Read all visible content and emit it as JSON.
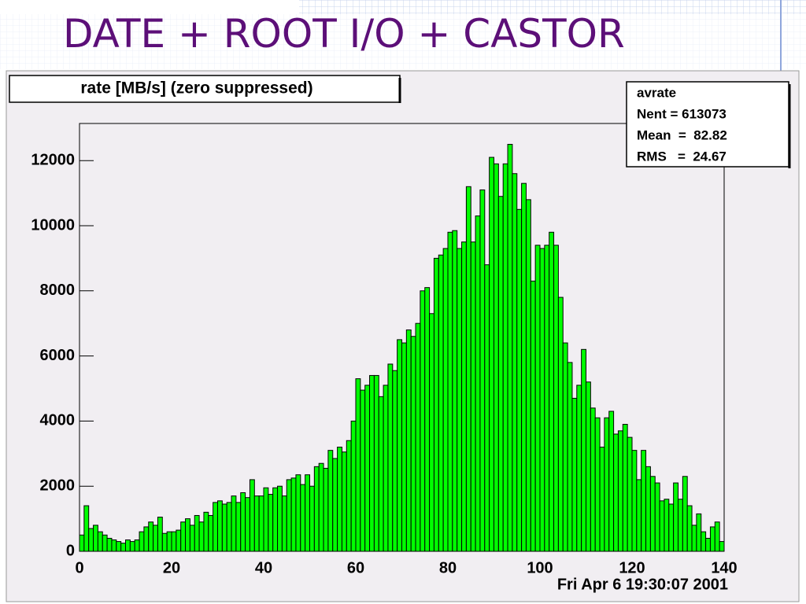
{
  "chart_data": {
    "type": "histogram",
    "slide_title": "DATE + ROOT I/O + CASTOR",
    "title": "rate [MB/s] (zero suppressed)",
    "stats": [
      "avrate",
      "Nent = 613073",
      "Mean  =  82.82",
      "RMS   =  24.67"
    ],
    "timestamp": "Fri Apr  6 19:30:07 2001",
    "color": "#00ff00",
    "bins": [
      0,
      1,
      2,
      3,
      4,
      5,
      6,
      7,
      8,
      9,
      10,
      11,
      12,
      13,
      14,
      15,
      16,
      17,
      18,
      19,
      20,
      21,
      22,
      23,
      24,
      25,
      26,
      27,
      28,
      29,
      30,
      31,
      32,
      33,
      34,
      35,
      36,
      37,
      38,
      39,
      40,
      41,
      42,
      43,
      44,
      45,
      46,
      47,
      48,
      49,
      50,
      51,
      52,
      53,
      54,
      55,
      56,
      57,
      58,
      59,
      60,
      61,
      62,
      63,
      64,
      65,
      66,
      67,
      68,
      69,
      70,
      71,
      72,
      73,
      74,
      75,
      76,
      77,
      78,
      79,
      80,
      81,
      82,
      83,
      84,
      85,
      86,
      87,
      88,
      89,
      90,
      91,
      92,
      93,
      94,
      95,
      96,
      97,
      98,
      99,
      100,
      101,
      102,
      103,
      104,
      105,
      106,
      107,
      108,
      109,
      110,
      111,
      112,
      113,
      114,
      115,
      116,
      117,
      118,
      119,
      120,
      121,
      122,
      123,
      124,
      125,
      126,
      127,
      128,
      129,
      130,
      131,
      132,
      133,
      134,
      135,
      136,
      137,
      138,
      139,
      140
    ],
    "values": [
      500,
      1400,
      700,
      800,
      600,
      500,
      400,
      350,
      300,
      250,
      350,
      300,
      350,
      600,
      750,
      900,
      800,
      1050,
      550,
      600,
      600,
      650,
      900,
      1000,
      800,
      1100,
      900,
      1200,
      1100,
      1500,
      1550,
      1450,
      1500,
      1700,
      1500,
      1800,
      1650,
      2200,
      1700,
      1700,
      1950,
      1750,
      1950,
      2000,
      1700,
      2200,
      2250,
      2350,
      2050,
      2350,
      2000,
      2600,
      2700,
      2550,
      3100,
      2850,
      3200,
      3050,
      3400,
      4000,
      5300,
      4950,
      5100,
      5400,
      5400,
      4750,
      5100,
      5750,
      5550,
      6500,
      6400,
      6800,
      6600,
      7000,
      8000,
      8100,
      7300,
      9000,
      9100,
      9300,
      9800,
      9850,
      9300,
      9500,
      11200,
      9500,
      10300,
      11100,
      8800,
      12100,
      11900,
      10900,
      11900,
      12500,
      11600,
      10500,
      11300,
      10800,
      8300,
      9400,
      9300,
      9400,
      9800,
      9400,
      7800,
      6400,
      5800,
      4700,
      5100,
      6200,
      5200,
      4400,
      4100,
      3200,
      4100,
      4300,
      3600,
      3700,
      3900,
      3500,
      3100,
      2200,
      3100,
      2600,
      2300,
      2100,
      1550,
      1600,
      1450,
      2100,
      1600,
      2300,
      1400,
      800,
      1150,
      600,
      400,
      750,
      900,
      300
    ],
    "xlim": [
      0,
      140
    ],
    "xticks": [
      0,
      20,
      40,
      60,
      80,
      100,
      120,
      140
    ],
    "ylim": [
      0,
      13140
    ],
    "yticks": [
      0,
      2000,
      4000,
      6000,
      8000,
      10000,
      12000
    ]
  }
}
